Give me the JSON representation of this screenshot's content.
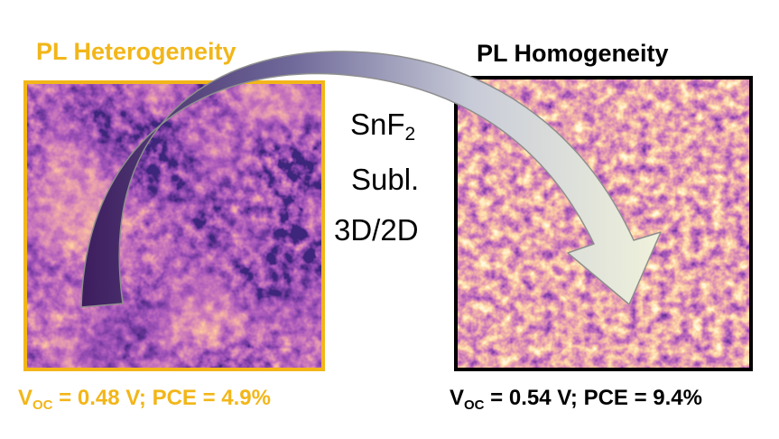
{
  "left": {
    "title": "PL Heterogeneity",
    "voc_prefix": "V",
    "voc_sub": "OC",
    "stats_suffix": " = 0.48 V; PCE = 4.9%",
    "accent": "#F2B619"
  },
  "right": {
    "title": "PL Homogeneity",
    "voc_prefix": "V",
    "voc_sub": "OC",
    "stats_suffix": " = 0.54 V; PCE = 9.4%",
    "accent": "#000000"
  },
  "middle": {
    "line1_main": "SnF",
    "line1_sub": "2",
    "line2": "Subl.",
    "line3": "3D/2D"
  },
  "arrow": {
    "gradient_start": "#3D1C5E",
    "gradient_end": "#F5F7DC",
    "stroke": "#8E8E8E"
  }
}
